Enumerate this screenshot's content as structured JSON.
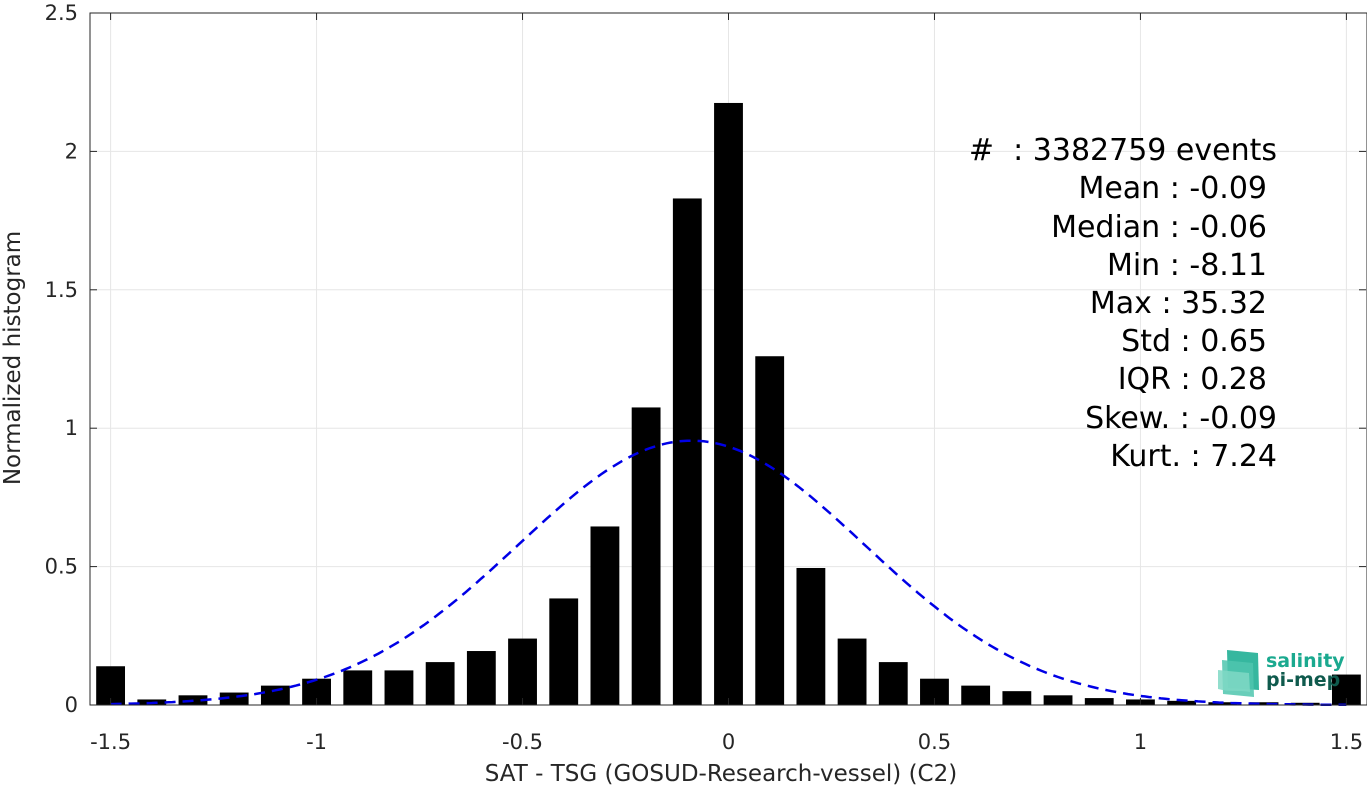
{
  "chart_data": {
    "type": "bar",
    "xlabel": "SAT - TSG (GOSUD-Research-vessel) (C2)",
    "ylabel": "Normalized histogram",
    "xlim": [
      -1.55,
      1.55
    ],
    "ylim": [
      0,
      2.5
    ],
    "grid": true,
    "x_ticks": [
      -1.5,
      -1,
      -0.5,
      0,
      0.5,
      1,
      1.5
    ],
    "x_tick_labels": [
      "-1.5",
      "-1",
      "-0.5",
      "0",
      "0.5",
      "1",
      "1.5"
    ],
    "y_ticks": [
      0,
      0.5,
      1,
      1.5,
      2,
      2.5
    ],
    "y_tick_labels": [
      "0",
      "0.5",
      "1",
      "1.5",
      "2",
      "2.5"
    ],
    "bar_color": "#000000",
    "bar_width": 0.07,
    "bins_x": [
      -1.5,
      -1.4,
      -1.3,
      -1.2,
      -1.1,
      -1.0,
      -0.9,
      -0.8,
      -0.7,
      -0.6,
      -0.5,
      -0.4,
      -0.3,
      -0.2,
      -0.1,
      0.0,
      0.1,
      0.2,
      0.3,
      0.4,
      0.5,
      0.6,
      0.7,
      0.8,
      0.9,
      1.0,
      1.1,
      1.2,
      1.3,
      1.4,
      1.5
    ],
    "values": [
      0.14,
      0.02,
      0.035,
      0.045,
      0.07,
      0.095,
      0.125,
      0.125,
      0.155,
      0.195,
      0.24,
      0.385,
      0.645,
      1.075,
      1.83,
      2.175,
      1.26,
      0.495,
      0.24,
      0.155,
      0.095,
      0.07,
      0.05,
      0.035,
      0.025,
      0.02,
      0.015,
      0.01,
      0.01,
      0.008,
      0.11
    ],
    "gaussian_fit": {
      "mean": -0.09,
      "std": 0.42,
      "peak": 0.955,
      "color": "#0000e6",
      "style": "dashed"
    },
    "stats_lines": [
      "#  : 3382759 events",
      "Mean : -0.09",
      "Median : -0.06",
      "Min : -8.11",
      "Max : 35.32",
      "Std : 0.65",
      "IQR : 0.28",
      "Skew. : -0.09",
      "Kurt. : 7.24"
    ]
  },
  "logo": {
    "line1": "salinity",
    "line2": "pi-mep",
    "color1": "#1aa98f",
    "color2": "#0f5a4d"
  }
}
